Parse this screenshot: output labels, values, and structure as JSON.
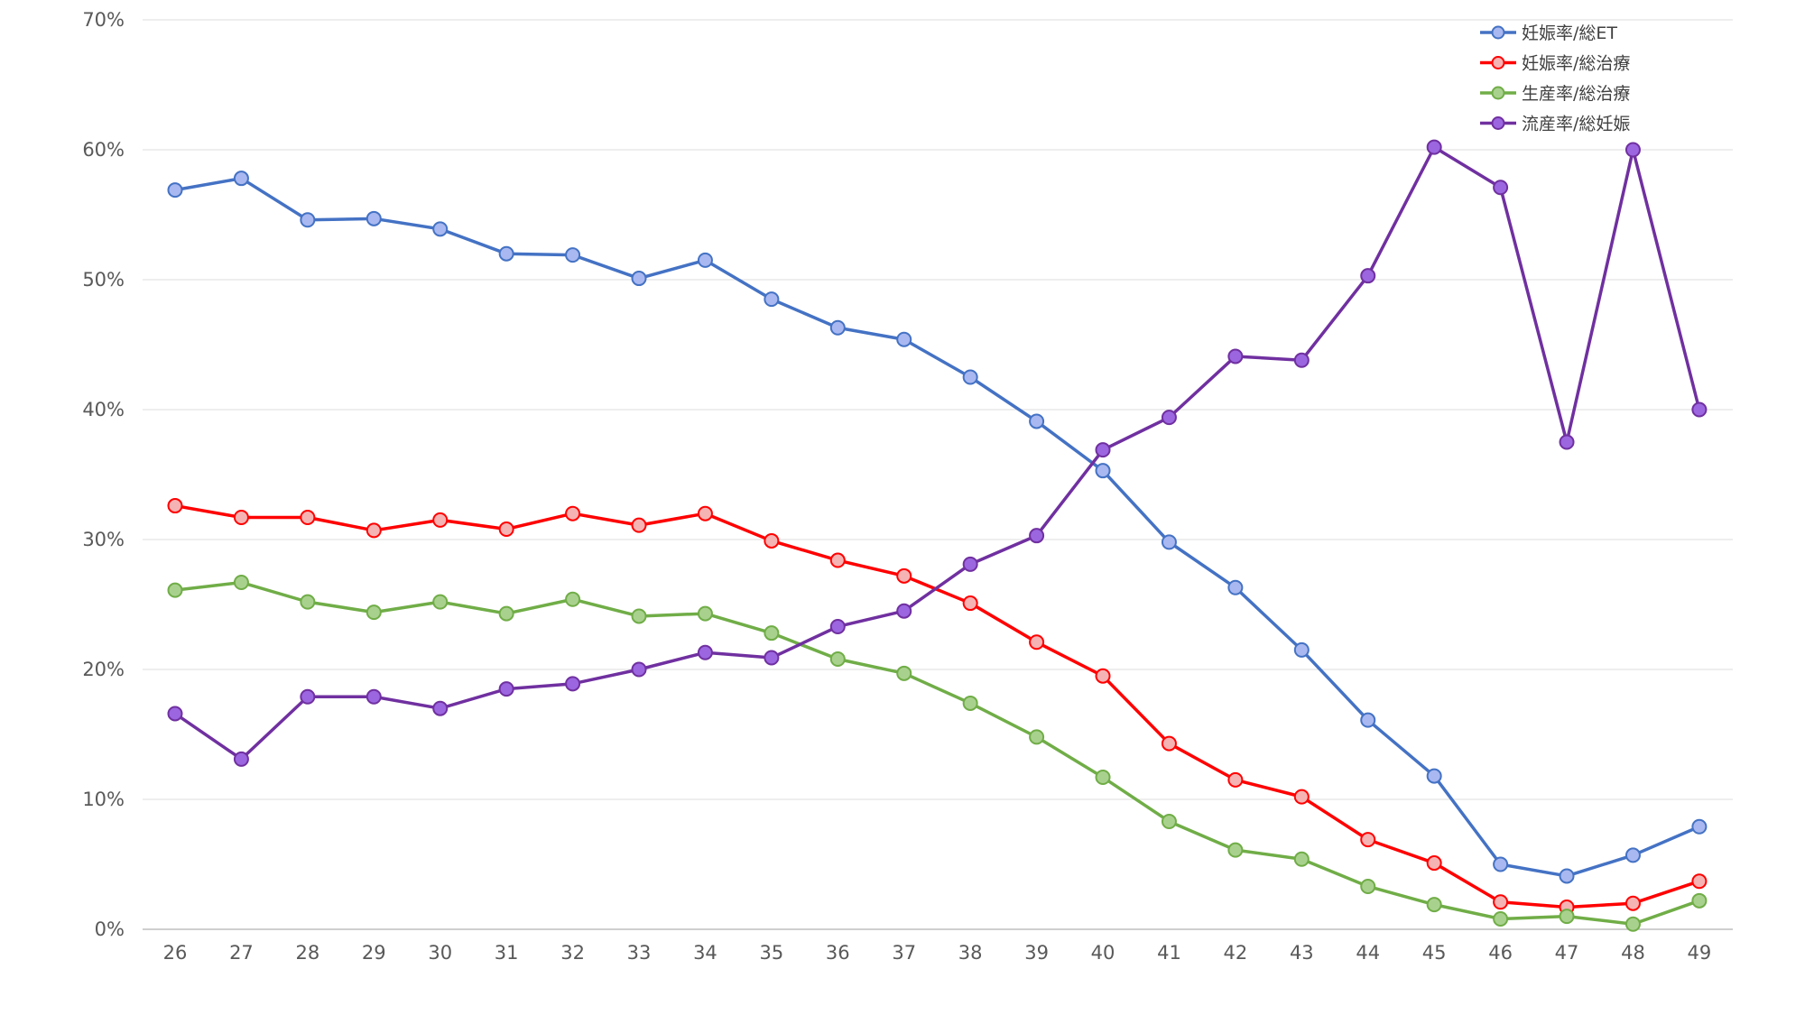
{
  "chart_data": {
    "type": "line",
    "title": "",
    "xlabel": "",
    "ylabel": "",
    "ylim": [
      0,
      0.7
    ],
    "y_ticks": [
      "0%",
      "10%",
      "20%",
      "30%",
      "40%",
      "50%",
      "60%",
      "70%"
    ],
    "x": [
      26,
      27,
      28,
      29,
      30,
      31,
      32,
      33,
      34,
      35,
      36,
      37,
      38,
      39,
      40,
      41,
      42,
      43,
      44,
      45,
      46,
      47,
      48,
      49
    ],
    "grid": true,
    "legend_position": "top-right",
    "series": [
      {
        "name": "妊娠率/総ET",
        "color": "#4472c4",
        "marker_fill": "#a9b8f0",
        "values": [
          0.569,
          0.578,
          0.546,
          0.547,
          0.539,
          0.52,
          0.519,
          0.501,
          0.515,
          0.485,
          0.463,
          0.454,
          0.425,
          0.391,
          0.353,
          0.298,
          0.263,
          0.215,
          0.161,
          0.118,
          0.05,
          0.041,
          0.057,
          0.079
        ]
      },
      {
        "name": "妊娠率/総治療",
        "color": "#ff0000",
        "marker_fill": "#f6b3b3",
        "values": [
          0.326,
          0.317,
          0.317,
          0.307,
          0.315,
          0.308,
          0.32,
          0.311,
          0.32,
          0.299,
          0.284,
          0.272,
          0.251,
          0.221,
          0.195,
          0.143,
          0.115,
          0.102,
          0.069,
          0.051,
          0.021,
          0.017,
          0.02,
          0.037
        ]
      },
      {
        "name": "生産率/総治療",
        "color": "#70ad47",
        "marker_fill": "#a9d18e",
        "values": [
          0.261,
          0.267,
          0.252,
          0.244,
          0.252,
          0.243,
          0.254,
          0.241,
          0.243,
          0.228,
          0.208,
          0.197,
          0.174,
          0.148,
          0.117,
          0.083,
          0.061,
          0.054,
          0.033,
          0.019,
          0.008,
          0.01,
          0.004,
          0.022
        ]
      },
      {
        "name": "流産率/総妊娠",
        "color": "#7030a0",
        "marker_fill": "#9b66e0",
        "values": [
          0.166,
          0.131,
          0.179,
          0.179,
          0.17,
          0.185,
          0.189,
          0.2,
          0.213,
          0.209,
          0.233,
          0.245,
          0.281,
          0.303,
          0.369,
          0.394,
          0.441,
          0.438,
          0.503,
          0.602,
          0.571,
          0.375,
          0.6,
          0.4
        ]
      }
    ]
  }
}
